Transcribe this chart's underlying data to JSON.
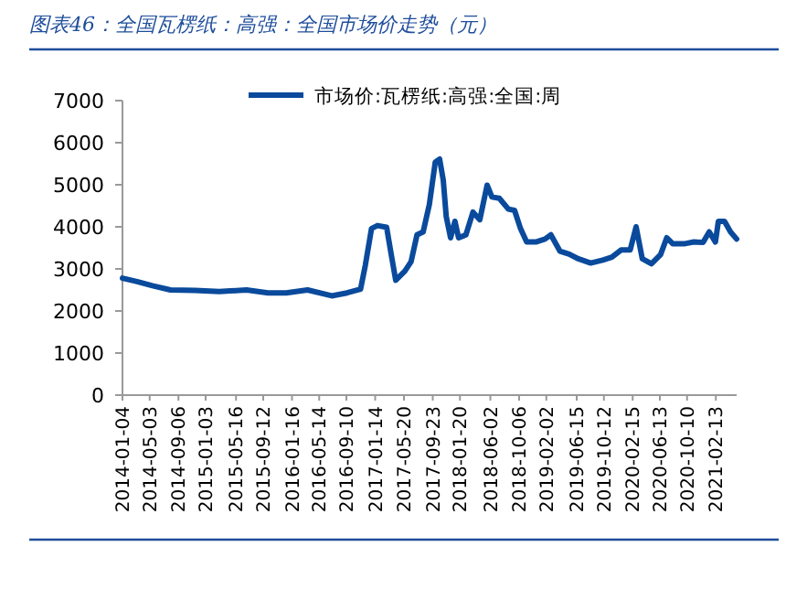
{
  "chart_data": {
    "type": "line",
    "title": "图表46：全国瓦楞纸：高强：全国市场价走势（元）",
    "x": [
      "2014-01-04",
      "2014-03-09",
      "2014-05-15",
      "2014-08-02",
      "2014-11-17",
      "2015-03-04",
      "2015-07-01",
      "2015-10-03",
      "2015-12-22",
      "2016-03-24",
      "2016-07-08",
      "2016-09-13",
      "2016-11-11",
      "2016-12-02",
      "2016-12-29",
      "2017-01-24",
      "2017-03-05",
      "2017-03-24",
      "2017-04-14",
      "2017-05-24",
      "2017-06-20",
      "2017-07-16",
      "2017-08-12",
      "2017-09-08",
      "2017-10-04",
      "2017-10-23",
      "2017-11-08",
      "2017-11-21",
      "2017-12-10",
      "2017-12-29",
      "2018-01-14",
      "2018-02-15",
      "2018-03-18",
      "2018-04-17",
      "2018-05-19",
      "2018-06-09",
      "2018-07-11",
      "2018-08-20",
      "2018-09-16",
      "2018-10-12",
      "2018-11-08",
      "2018-12-18",
      "2019-01-27",
      "2019-02-22",
      "2019-04-03",
      "2019-05-13",
      "2019-06-22",
      "2019-08-15",
      "2019-10-07",
      "2019-11-16",
      "2019-12-26",
      "2020-02-04",
      "2020-03-01",
      "2020-03-28",
      "2020-05-07",
      "2020-06-16",
      "2020-07-13",
      "2020-08-08",
      "2020-10-01",
      "2020-11-09",
      "2020-12-19",
      "2021-01-15",
      "2021-02-11",
      "2021-02-24",
      "2021-03-23",
      "2021-04-18",
      "2021-05-15"
    ],
    "series": [
      {
        "name": "市场价:瓦楞纸:高强:全国:周",
        "color": "#0a4a9c",
        "values": [
          2780,
          2700,
          2600,
          2500,
          2490,
          2460,
          2500,
          2430,
          2430,
          2500,
          2360,
          2430,
          2520,
          3090,
          3960,
          4030,
          3990,
          3380,
          2730,
          2950,
          3170,
          3810,
          3880,
          4530,
          5540,
          5610,
          5110,
          4240,
          3740,
          4130,
          3740,
          3810,
          4350,
          4170,
          4990,
          4710,
          4680,
          4420,
          4390,
          3960,
          3640,
          3640,
          3710,
          3810,
          3420,
          3350,
          3240,
          3140,
          3210,
          3280,
          3450,
          3450,
          4000,
          3240,
          3120,
          3340,
          3740,
          3600,
          3600,
          3640,
          3630,
          3880,
          3640,
          4130,
          4130,
          3880,
          3710
        ]
      }
    ],
    "xlim": [
      "2014-01-04",
      "2021-05-15"
    ],
    "xticks": [
      "2014-01-04",
      "2014-05-03",
      "2014-09-06",
      "2015-01-03",
      "2015-05-16",
      "2015-09-12",
      "2016-01-16",
      "2016-05-14",
      "2016-09-10",
      "2017-01-14",
      "2017-05-20",
      "2017-09-23",
      "2018-01-20",
      "2018-06-02",
      "2018-10-06",
      "2019-02-02",
      "2019-06-15",
      "2019-10-12",
      "2020-02-15",
      "2020-06-13",
      "2020-10-10",
      "2021-02-13"
    ],
    "ylim": [
      0,
      7000
    ],
    "yticks": [
      0,
      1000,
      2000,
      3000,
      4000,
      5000,
      6000,
      7000
    ],
    "legend": "top",
    "marker": "none",
    "line_style": "solid"
  }
}
